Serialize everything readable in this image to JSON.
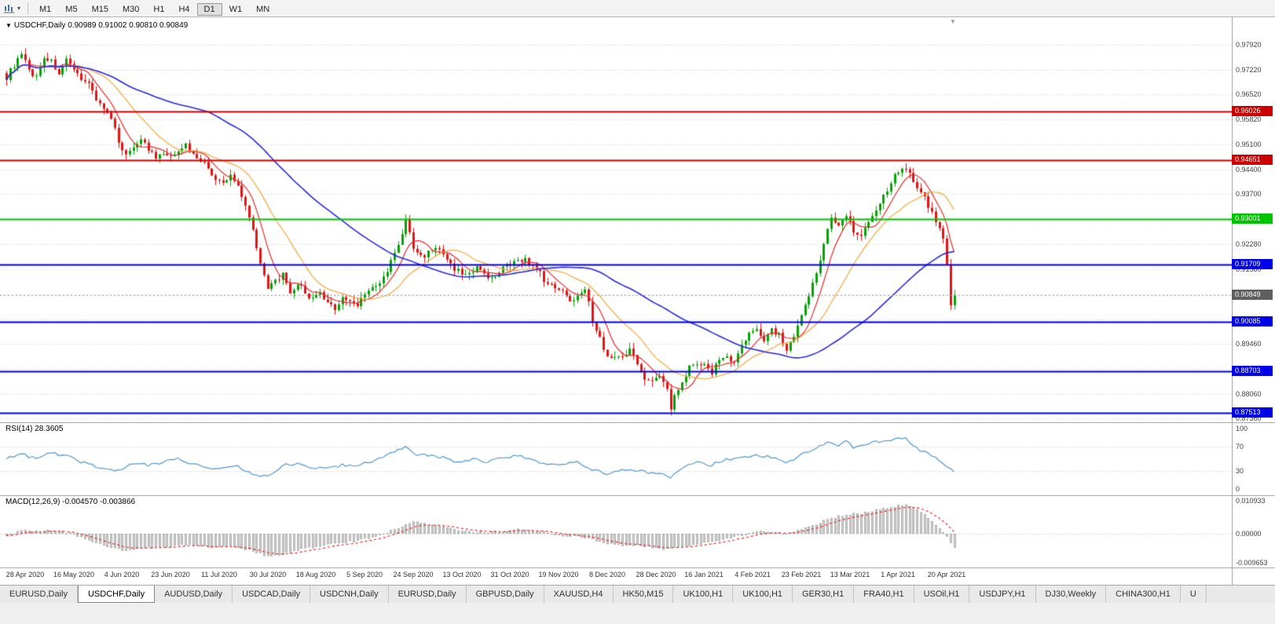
{
  "toolbar": {
    "timeframes": [
      "M1",
      "M5",
      "M15",
      "M30",
      "H1",
      "H4",
      "D1",
      "W1",
      "MN"
    ],
    "active_timeframe": "D1",
    "chart_icon": "chart-type-icon",
    "caret": "▾"
  },
  "chart": {
    "title_marker": "▼",
    "title": "USDCHF,Daily 0.90989 0.91002 0.90810 0.90849"
  },
  "rsi_panel": {
    "label": "RSI(14) 28.3605"
  },
  "macd_panel": {
    "label": "MACD(12,26,9) -0.004570 -0.003866"
  },
  "chart_data": {
    "type": "candlestick",
    "symbol": "USDCHF",
    "timeframe": "Daily",
    "ohlc_display": {
      "open": "0.90989",
      "high": "0.91002",
      "low": "0.90810",
      "close": "0.90849"
    },
    "colors": {
      "bull": "#0aa10a",
      "bear": "#e01515",
      "ma_fast": "#e52b2b",
      "ma_mid": "#f0a93b",
      "ma_slow": "#2a2ad8",
      "grid": "#d2d2d2",
      "rsi_line": "#4f97cf",
      "macd_hist_fill": "#d2d2d2",
      "macd_hist_stroke": "#9c9c9c",
      "macd_signal": "#ee1111",
      "current_badge": "#5f5f5f"
    },
    "y_axis": {
      "ticks": [
        "0.97920",
        "0.97220",
        "0.96520",
        "0.95820",
        "0.95100",
        "0.94400",
        "0.93700",
        "0.92980",
        "0.92280",
        "0.91580",
        "0.90870",
        "0.90160",
        "0.89460",
        "0.88760",
        "0.88060",
        "0.87360"
      ]
    },
    "x_axis": {
      "labels": [
        "28 Apr 2020",
        "16 May 2020",
        "4 Jun 2020",
        "23 Jun 2020",
        "11 Jul 2020",
        "30 Jul 2020",
        "18 Aug 2020",
        "5 Sep 2020",
        "24 Sep 2020",
        "13 Oct 2020",
        "31 Oct 2020",
        "19 Nov 2020",
        "8 Dec 2020",
        "28 Dec 2020",
        "16 Jan 2021",
        "4 Feb 2021",
        "23 Feb 2021",
        "13 Mar 2021",
        "1 Apr 2021",
        "20 Apr 2021"
      ],
      "first_label_bar": 5,
      "bars_per_label": 13
    },
    "levels": [
      {
        "price": "0.96026",
        "value": 0.96026,
        "color": "#cc0000",
        "style": "solid"
      },
      {
        "price": "0.94651",
        "value": 0.94651,
        "color": "#cc0000",
        "style": "solid"
      },
      {
        "price": "0.93001",
        "value": 0.93001,
        "color": "#00c400",
        "style": "solid"
      },
      {
        "price": "0.91709",
        "value": 0.91709,
        "color": "#0000e8",
        "style": "solid"
      },
      {
        "price": "0.90849",
        "value": 0.90849,
        "color": "#5f5f5f",
        "style": "current"
      },
      {
        "price": "0.90085",
        "value": 0.90085,
        "color": "#0000e8",
        "style": "solid"
      },
      {
        "price": "0.88703",
        "value": 0.88703,
        "color": "#0000e8",
        "style": "solid"
      },
      {
        "price": "0.87513",
        "value": 0.87513,
        "color": "#0000e8",
        "style": "solid"
      }
    ],
    "bar_count": 255,
    "close_anchors": [
      [
        0,
        0.97
      ],
      [
        2,
        0.9735
      ],
      [
        4,
        0.9762
      ],
      [
        6,
        0.972
      ],
      [
        8,
        0.97
      ],
      [
        10,
        0.9758
      ],
      [
        12,
        0.9744
      ],
      [
        14,
        0.9712
      ],
      [
        16,
        0.9745
      ],
      [
        18,
        0.9716
      ],
      [
        20,
        0.97
      ],
      [
        22,
        0.9682
      ],
      [
        24,
        0.964
      ],
      [
        26,
        0.9612
      ],
      [
        28,
        0.9578
      ],
      [
        30,
        0.9522
      ],
      [
        32,
        0.9478
      ],
      [
        34,
        0.9506
      ],
      [
        36,
        0.9528
      ],
      [
        38,
        0.9495
      ],
      [
        40,
        0.947
      ],
      [
        42,
        0.9484
      ],
      [
        44,
        0.947
      ],
      [
        46,
        0.9498
      ],
      [
        48,
        0.9508
      ],
      [
        50,
        0.9482
      ],
      [
        52,
        0.9468
      ],
      [
        54,
        0.9442
      ],
      [
        56,
        0.941
      ],
      [
        58,
        0.9398
      ],
      [
        60,
        0.9422
      ],
      [
        62,
        0.9395
      ],
      [
        64,
        0.934
      ],
      [
        66,
        0.9268
      ],
      [
        68,
        0.918
      ],
      [
        70,
        0.9098
      ],
      [
        72,
        0.9126
      ],
      [
        74,
        0.9142
      ],
      [
        76,
        0.9082
      ],
      [
        78,
        0.9118
      ],
      [
        80,
        0.9092
      ],
      [
        82,
        0.9072
      ],
      [
        84,
        0.9088
      ],
      [
        86,
        0.9058
      ],
      [
        88,
        0.9048
      ],
      [
        90,
        0.9078
      ],
      [
        92,
        0.9064
      ],
      [
        94,
        0.9058
      ],
      [
        96,
        0.9092
      ],
      [
        98,
        0.9102
      ],
      [
        100,
        0.9115
      ],
      [
        102,
        0.9152
      ],
      [
        104,
        0.9205
      ],
      [
        106,
        0.9252
      ],
      [
        107,
        0.9295
      ],
      [
        108,
        0.9262
      ],
      [
        109,
        0.9218
      ],
      [
        111,
        0.9192
      ],
      [
        113,
        0.9206
      ],
      [
        115,
        0.9222
      ],
      [
        117,
        0.9195
      ],
      [
        119,
        0.9168
      ],
      [
        121,
        0.9152
      ],
      [
        123,
        0.914
      ],
      [
        125,
        0.9156
      ],
      [
        127,
        0.9162
      ],
      [
        129,
        0.9138
      ],
      [
        131,
        0.9128
      ],
      [
        133,
        0.9162
      ],
      [
        135,
        0.9168
      ],
      [
        137,
        0.9182
      ],
      [
        139,
        0.9188
      ],
      [
        141,
        0.9162
      ],
      [
        143,
        0.9145
      ],
      [
        145,
        0.9112
      ],
      [
        147,
        0.9108
      ],
      [
        149,
        0.9102
      ],
      [
        151,
        0.9062
      ],
      [
        153,
        0.9088
      ],
      [
        155,
        0.9108
      ],
      [
        157,
        0.9012
      ],
      [
        159,
        0.8962
      ],
      [
        161,
        0.8912
      ],
      [
        163,
        0.8905
      ],
      [
        165,
        0.8918
      ],
      [
        167,
        0.8928
      ],
      [
        169,
        0.8895
      ],
      [
        171,
        0.8852
      ],
      [
        173,
        0.8838
      ],
      [
        175,
        0.8858
      ],
      [
        177,
        0.8815
      ],
      [
        178,
        0.8762
      ],
      [
        179,
        0.8802
      ],
      [
        181,
        0.8845
      ],
      [
        183,
        0.8882
      ],
      [
        185,
        0.8895
      ],
      [
        187,
        0.8884
      ],
      [
        189,
        0.8868
      ],
      [
        191,
        0.8905
      ],
      [
        193,
        0.8912
      ],
      [
        195,
        0.8892
      ],
      [
        197,
        0.8942
      ],
      [
        199,
        0.8972
      ],
      [
        201,
        0.8992
      ],
      [
        203,
        0.8962
      ],
      [
        205,
        0.8988
      ],
      [
        207,
        0.8972
      ],
      [
        209,
        0.8928
      ],
      [
        211,
        0.8962
      ],
      [
        213,
        0.9022
      ],
      [
        215,
        0.9085
      ],
      [
        217,
        0.9148
      ],
      [
        219,
        0.9232
      ],
      [
        221,
        0.9302
      ],
      [
        223,
        0.9282
      ],
      [
        225,
        0.9315
      ],
      [
        227,
        0.9268
      ],
      [
        229,
        0.9252
      ],
      [
        231,
        0.9298
      ],
      [
        233,
        0.9325
      ],
      [
        235,
        0.9362
      ],
      [
        237,
        0.9405
      ],
      [
        239,
        0.9438
      ],
      [
        241,
        0.9448
      ],
      [
        243,
        0.9402
      ],
      [
        245,
        0.9378
      ],
      [
        247,
        0.9338
      ],
      [
        249,
        0.9295
      ],
      [
        251,
        0.9242
      ],
      [
        252,
        0.9175
      ],
      [
        253,
        0.906
      ],
      [
        254,
        0.90849
      ]
    ],
    "moving_averages": [
      {
        "period": 7,
        "color": "#e52b2b"
      },
      {
        "period": 18,
        "color": "#f0a93b"
      },
      {
        "period": 55,
        "color": "#2a2ad8"
      }
    ],
    "rsi": {
      "period": 14,
      "last": 28.3605,
      "axis_ticks": [
        100,
        70,
        30,
        0
      ],
      "guide_levels": [
        70,
        30
      ],
      "anchors": [
        [
          0,
          52
        ],
        [
          4,
          58
        ],
        [
          8,
          50
        ],
        [
          12,
          60
        ],
        [
          16,
          55
        ],
        [
          20,
          45
        ],
        [
          24,
          38
        ],
        [
          28,
          32
        ],
        [
          30,
          30
        ],
        [
          34,
          42
        ],
        [
          38,
          40
        ],
        [
          42,
          44
        ],
        [
          46,
          50
        ],
        [
          50,
          42
        ],
        [
          54,
          36
        ],
        [
          58,
          34
        ],
        [
          62,
          38
        ],
        [
          66,
          24
        ],
        [
          70,
          20
        ],
        [
          74,
          40
        ],
        [
          78,
          42
        ],
        [
          82,
          36
        ],
        [
          86,
          33
        ],
        [
          90,
          40
        ],
        [
          94,
          38
        ],
        [
          98,
          46
        ],
        [
          102,
          55
        ],
        [
          106,
          66
        ],
        [
          107,
          70
        ],
        [
          109,
          58
        ],
        [
          113,
          55
        ],
        [
          117,
          52
        ],
        [
          121,
          44
        ],
        [
          125,
          50
        ],
        [
          129,
          44
        ],
        [
          133,
          52
        ],
        [
          137,
          56
        ],
        [
          141,
          48
        ],
        [
          145,
          40
        ],
        [
          149,
          42
        ],
        [
          153,
          46
        ],
        [
          157,
          32
        ],
        [
          161,
          26
        ],
        [
          165,
          34
        ],
        [
          169,
          30
        ],
        [
          173,
          26
        ],
        [
          177,
          22
        ],
        [
          178,
          19
        ],
        [
          181,
          35
        ],
        [
          185,
          44
        ],
        [
          189,
          40
        ],
        [
          193,
          48
        ],
        [
          197,
          52
        ],
        [
          201,
          56
        ],
        [
          205,
          52
        ],
        [
          209,
          42
        ],
        [
          213,
          58
        ],
        [
          217,
          68
        ],
        [
          221,
          78
        ],
        [
          223,
          72
        ],
        [
          225,
          80
        ],
        [
          227,
          68
        ],
        [
          231,
          74
        ],
        [
          235,
          80
        ],
        [
          239,
          84
        ],
        [
          241,
          85
        ],
        [
          243,
          70
        ],
        [
          245,
          64
        ],
        [
          247,
          58
        ],
        [
          249,
          52
        ],
        [
          251,
          44
        ],
        [
          253,
          34
        ],
        [
          254,
          28.4
        ]
      ]
    },
    "macd": {
      "fast": 12,
      "slow": 26,
      "signal_period": 9,
      "macd_last": -0.00457,
      "signal_last": -0.003866,
      "axis_ticks": [
        "0.010933",
        "0.00000",
        "-0.009653"
      ],
      "axis_tick_values": [
        0.010933,
        0,
        -0.009653
      ],
      "anchors": [
        [
          0,
          -0.0008
        ],
        [
          4,
          0.001
        ],
        [
          8,
          0.0006
        ],
        [
          12,
          0.0012
        ],
        [
          16,
          0.0004
        ],
        [
          20,
          -0.001
        ],
        [
          24,
          -0.0028
        ],
        [
          28,
          -0.0045
        ],
        [
          32,
          -0.0058
        ],
        [
          36,
          -0.0048
        ],
        [
          40,
          -0.0046
        ],
        [
          44,
          -0.0042
        ],
        [
          48,
          -0.0036
        ],
        [
          52,
          -0.0042
        ],
        [
          56,
          -0.0048
        ],
        [
          60,
          -0.0042
        ],
        [
          64,
          -0.0052
        ],
        [
          68,
          -0.0066
        ],
        [
          70,
          -0.0076
        ],
        [
          74,
          -0.0068
        ],
        [
          78,
          -0.0055
        ],
        [
          82,
          -0.0045
        ],
        [
          86,
          -0.0038
        ],
        [
          90,
          -0.003
        ],
        [
          94,
          -0.0024
        ],
        [
          98,
          -0.0012
        ],
        [
          102,
          0.0004
        ],
        [
          106,
          0.0026
        ],
        [
          109,
          0.0038
        ],
        [
          113,
          0.0032
        ],
        [
          117,
          0.0026
        ],
        [
          121,
          0.0012
        ],
        [
          125,
          0.0006
        ],
        [
          129,
          0.0004
        ],
        [
          133,
          0.0008
        ],
        [
          137,
          0.0014
        ],
        [
          141,
          0.0012
        ],
        [
          145,
          0.0002
        ],
        [
          149,
          -0.0006
        ],
        [
          153,
          -0.0008
        ],
        [
          157,
          -0.002
        ],
        [
          161,
          -0.0034
        ],
        [
          165,
          -0.0038
        ],
        [
          169,
          -0.004
        ],
        [
          173,
          -0.0046
        ],
        [
          177,
          -0.0052
        ],
        [
          181,
          -0.0044
        ],
        [
          185,
          -0.0034
        ],
        [
          189,
          -0.0026
        ],
        [
          193,
          -0.0016
        ],
        [
          197,
          -0.0006
        ],
        [
          201,
          0.0006
        ],
        [
          205,
          0.0008
        ],
        [
          209,
          0.0
        ],
        [
          213,
          0.0014
        ],
        [
          217,
          0.0032
        ],
        [
          221,
          0.0052
        ],
        [
          225,
          0.0064
        ],
        [
          229,
          0.0068
        ],
        [
          233,
          0.0078
        ],
        [
          237,
          0.0088
        ],
        [
          240,
          0.0096
        ],
        [
          242,
          0.0094
        ],
        [
          244,
          0.0082
        ],
        [
          246,
          0.0064
        ],
        [
          248,
          0.0044
        ],
        [
          250,
          0.0018
        ],
        [
          252,
          -0.0012
        ],
        [
          253,
          -0.003
        ],
        [
          254,
          -0.00457
        ]
      ]
    }
  },
  "tabs": [
    {
      "label": "EURUSD,Daily"
    },
    {
      "label": "USDCHF,Daily",
      "active": true
    },
    {
      "label": "AUDUSD,Daily"
    },
    {
      "label": "USDCAD,Daily"
    },
    {
      "label": "USDCNH,Daily"
    },
    {
      "label": "EURUSD,Daily"
    },
    {
      "label": "GBPUSD,Daily"
    },
    {
      "label": "XAUUSD,H4"
    },
    {
      "label": "HK50,M15"
    },
    {
      "label": "UK100,H1"
    },
    {
      "label": "UK100,H1"
    },
    {
      "label": "GER30,H1"
    },
    {
      "label": "FRA40,H1"
    },
    {
      "label": "USOil,H1"
    },
    {
      "label": "USDJPY,H1"
    },
    {
      "label": "DJ30,Weekly"
    },
    {
      "label": "CHINA300,H1"
    },
    {
      "label": "U"
    }
  ]
}
